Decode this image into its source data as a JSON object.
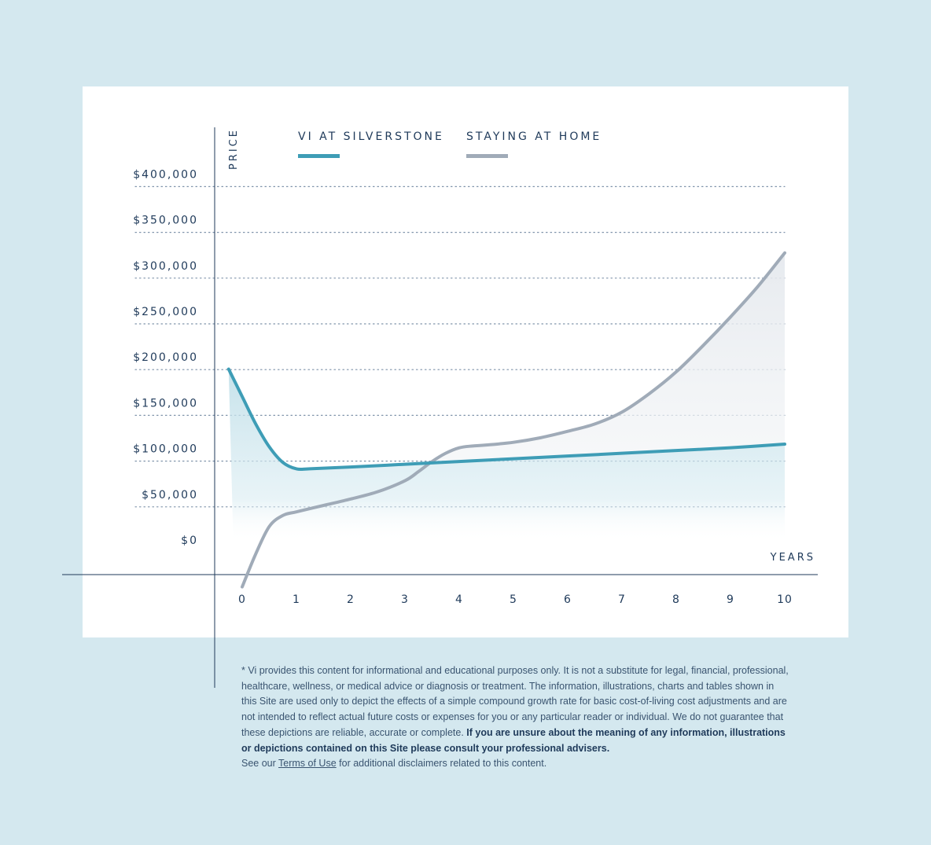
{
  "chart_data": {
    "type": "line",
    "ylabel": "PRICE",
    "xlabel": "YEARS",
    "x_ticks": [
      "0",
      "1",
      "2",
      "3",
      "4",
      "5",
      "6",
      "7",
      "8",
      "9",
      "10"
    ],
    "y_ticks": [
      "$0",
      "$50,000",
      "$100,000",
      "$150,000",
      "$200,000",
      "$250,000",
      "$300,000",
      "$350,000",
      "$400,000"
    ],
    "y_tick_values": [
      0,
      50000,
      100000,
      150000,
      200000,
      250000,
      300000,
      350000,
      400000
    ],
    "xlim": [
      0,
      10
    ],
    "ylim": [
      0,
      400000
    ],
    "grid": "horizontal dotted",
    "legend_position": "top",
    "series": [
      {
        "name": "VI AT SILVERSTONE",
        "color": "#3e9db6",
        "x": [
          -0.25,
          0,
          0.25,
          0.5,
          0.75,
          1,
          1.25,
          2,
          3,
          4,
          5,
          6,
          7,
          8,
          9,
          10
        ],
        "y": [
          210000,
          180000,
          150000,
          125000,
          108000,
          101000,
          101000,
          103000,
          106000,
          109000,
          112000,
          115000,
          118000,
          121000,
          124000,
          128000
        ]
      },
      {
        "name": "STAYING AT HOME",
        "color": "#a0abb8",
        "x": [
          0,
          0.25,
          0.5,
          0.75,
          1,
          1.5,
          2,
          2.5,
          3,
          3.25,
          3.5,
          3.75,
          4,
          4.25,
          4.5,
          5,
          5.5,
          6,
          6.5,
          7,
          7.5,
          8,
          8.5,
          9,
          9.5,
          10
        ],
        "y": [
          -28000,
          8000,
          38000,
          50000,
          54000,
          61000,
          68000,
          76000,
          88000,
          98000,
          109000,
          118000,
          124000,
          126000,
          127000,
          130000,
          135000,
          142000,
          150000,
          163000,
          183000,
          207000,
          236000,
          267000,
          300000,
          337000
        ]
      }
    ]
  },
  "footnote": {
    "intro": "* Vi provides this content for informational and educational purposes only. It is not a substitute for legal, financial, professional, healthcare, wellness, or medical advice or diagnosis or treatment. The information, illustrations, charts and tables shown in this Site are used only to depict the effects of a simple compound growth rate for basic cost-of-living cost adjustments and are not intended to reflect actual future costs or expenses for you or any particular reader or individual. We do not guarantee that these depictions are reliable, accurate or complete.",
    "bold": "If you are unsure about the meaning of any information, illustrations or depictions contained on this Site please consult your professional advisers.",
    "see_prefix": "See our",
    "link_text": "Terms of Use",
    "see_suffix": "for additional disclaimers related to this content."
  }
}
